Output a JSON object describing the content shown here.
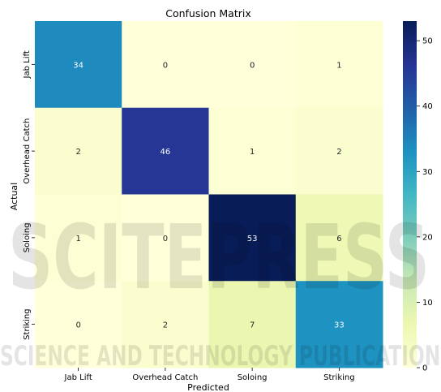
{
  "chart_data": {
    "type": "heatmap",
    "title": "Confusion Matrix",
    "xlabel": "Predicted",
    "ylabel": "Actual",
    "x_categories": [
      "Jab Lift",
      "Overhead Catch",
      "Soloing",
      "Striking"
    ],
    "y_categories": [
      "Jab Lift",
      "Overhead Catch",
      "Soloing",
      "Striking"
    ],
    "values": [
      [
        34,
        0,
        0,
        1
      ],
      [
        2,
        46,
        1,
        2
      ],
      [
        1,
        0,
        53,
        6
      ],
      [
        0,
        2,
        7,
        33
      ]
    ],
    "colormap": "YlGnBu",
    "colorbar": {
      "range": [
        0,
        53
      ],
      "ticks": [
        0,
        10,
        20,
        30,
        40,
        50
      ]
    },
    "watermark": {
      "line1": "SCITEPRESS",
      "line2": "SCIENCE AND TECHNOLOGY PUBLICATIONS"
    }
  }
}
